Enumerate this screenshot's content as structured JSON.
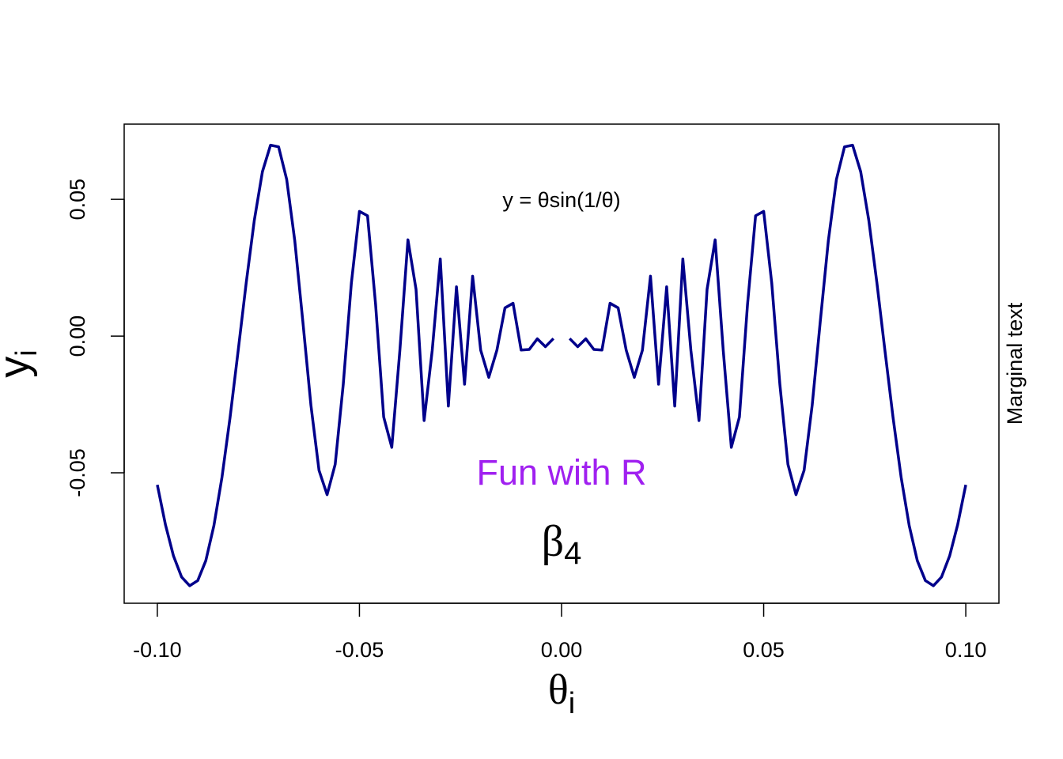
{
  "chart_data": {
    "type": "line",
    "x_label": "θ",
    "x_label_sub": "i",
    "y_label": "y",
    "y_label_sub": "i",
    "annotations": {
      "formula": "y = θsin(1/θ)",
      "fun": "Fun with R",
      "beta": "β",
      "beta_sub": "4",
      "margin": "Marginal text"
    },
    "fun_color": "#a020f0",
    "x": [
      -0.1,
      -0.098,
      -0.096,
      -0.094,
      -0.092,
      -0.09,
      -0.088,
      -0.086,
      -0.084,
      -0.082,
      -0.08,
      -0.078,
      -0.076,
      -0.074,
      -0.072,
      -0.07,
      -0.068,
      -0.066,
      -0.064,
      -0.062,
      -0.06,
      -0.058,
      -0.056,
      -0.054,
      -0.052,
      -0.05,
      -0.048,
      -0.046,
      -0.044,
      -0.042,
      -0.04,
      -0.038,
      -0.036,
      -0.034,
      -0.032,
      -0.03,
      -0.028,
      -0.026,
      -0.024,
      -0.022,
      -0.02,
      -0.018,
      -0.016,
      -0.014,
      -0.012,
      -0.01,
      -0.008,
      -0.006,
      -0.004,
      -0.002,
      0,
      0.002,
      0.004,
      0.006,
      0.008,
      0.01,
      0.012,
      0.014,
      0.016,
      0.018,
      0.02,
      0.022,
      0.024,
      0.026,
      0.028,
      0.03,
      0.032,
      0.034,
      0.036,
      0.038,
      0.04,
      0.042,
      0.044,
      0.046,
      0.048,
      0.05,
      0.052,
      0.054,
      0.056,
      0.058,
      0.06,
      0.062,
      0.064,
      0.066,
      0.068,
      0.07,
      0.072,
      0.074,
      0.076,
      0.078,
      0.08,
      0.082,
      0.084,
      0.086,
      0.088,
      0.09,
      0.092,
      0.094,
      0.096,
      0.098,
      0.1
    ],
    "series": [
      {
        "name": "θsin(1/θ)",
        "color": "#00008b",
        "values": [
          -0.0544,
          -0.0689,
          -0.0804,
          -0.0881,
          -0.0913,
          -0.0894,
          -0.0821,
          -0.0693,
          -0.0516,
          -0.0297,
          -0.0053,
          0.0196,
          0.0424,
          0.0601,
          0.0698,
          0.0692,
          0.0573,
          0.0349,
          0.0053,
          -0.0253,
          -0.0491,
          -0.058,
          -0.0469,
          -0.0176,
          0.0193,
          0.0456,
          0.044,
          0.0115,
          -0.0296,
          -0.0407,
          -0.0053,
          0.0352,
          0.0171,
          -0.0309,
          -0.0053,
          0.0282,
          -0.0256,
          0.018,
          -0.0176,
          0.0219,
          -0.0052,
          -0.0151,
          -0.0052,
          0.0103,
          0.012,
          -0.0051,
          -0.0049,
          -0.001,
          -0.0039,
          -0.0009,
          null,
          -0.0009,
          -0.0039,
          -0.001,
          -0.0049,
          -0.0051,
          0.012,
          0.0103,
          -0.0052,
          -0.0151,
          -0.0052,
          0.0219,
          -0.0176,
          0.018,
          -0.0256,
          0.0282,
          -0.0053,
          -0.0309,
          0.0171,
          0.0352,
          -0.0053,
          -0.0407,
          -0.0296,
          0.0115,
          0.044,
          0.0456,
          0.0193,
          -0.0176,
          -0.0469,
          -0.058,
          -0.0491,
          -0.0253,
          0.0053,
          0.0349,
          0.0573,
          0.0692,
          0.0698,
          0.0601,
          0.0424,
          0.0196,
          -0.0053,
          -0.0297,
          -0.0516,
          -0.0693,
          -0.0821,
          -0.0894,
          -0.0913,
          -0.0881,
          -0.0804,
          -0.0689,
          -0.0544
        ]
      }
    ],
    "xlim": [
      -0.1082,
      0.1082
    ],
    "ylim": [
      -0.0977,
      0.0775
    ],
    "xticks": [
      {
        "value": -0.1,
        "label": "-0.10"
      },
      {
        "value": -0.05,
        "label": "-0.05"
      },
      {
        "value": 0,
        "label": "0.00"
      },
      {
        "value": 0.05,
        "label": "0.05"
      },
      {
        "value": 0.1,
        "label": "0.10"
      }
    ],
    "yticks": [
      {
        "value": -0.05,
        "label": "-0.05"
      },
      {
        "value": 0,
        "label": "0.00"
      },
      {
        "value": 0.05,
        "label": "0.05"
      }
    ],
    "grid": false
  }
}
